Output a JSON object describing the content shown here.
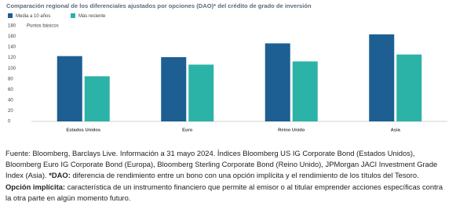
{
  "chart_data": {
    "type": "bar",
    "title": "Comparación regional de los diferenciales ajustados por opciones (DAO)* del crédito de grado de inversión",
    "y_label": "Puntos básicos",
    "categories": [
      "Estados Unidos",
      "Euro",
      "Reino Unido",
      "Asia"
    ],
    "series": [
      {
        "name": "Media a 10 años",
        "color": "#1d5f92",
        "values": [
          123,
          121,
          147,
          164
        ]
      },
      {
        "name": "Más reciente",
        "color": "#2bb3a8",
        "values": [
          85,
          107,
          113,
          126
        ]
      }
    ],
    "ylim": [
      0,
      180
    ],
    "yticks": [
      0,
      20,
      40,
      60,
      80,
      100,
      120,
      140,
      160,
      180
    ],
    "grid": false
  },
  "notes": {
    "paragraph1": [
      "Fuente: Bloomberg, Barclays Live. Información a 31 mayo 2024. Índices Bloomberg US IG Corporate Bond (Estados Unidos), Bloomberg Euro IG Corporate Bond (Europa), Bloomberg Sterling Corporate Bond (Reino Unido), JPMorgan JACI Investment Grade Index (Asia).",
      "*DAO:",
      "diferencia de rendimiento entre un bono con una opción implícita y el rendimiento de los títulos del Tesoro."
    ],
    "paragraph2": [
      "Opción implícita:",
      "característica de un instrumento financiero que permite al emisor o al titular emprender acciones específicas contra la otra parte en algún momento futuro."
    ]
  }
}
